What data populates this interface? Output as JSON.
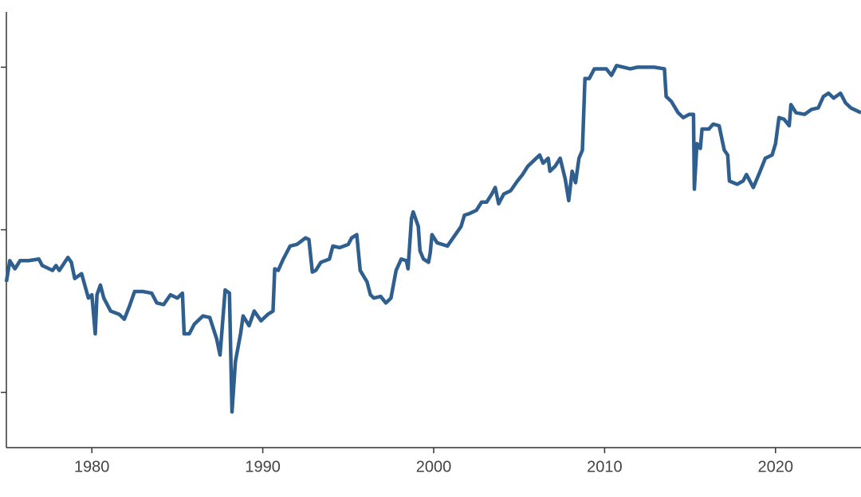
{
  "chart_data": {
    "type": "line",
    "x": [
      1975.0,
      1975.2,
      1975.5,
      1975.8,
      1976.3,
      1976.9,
      1977.1,
      1977.7,
      1977.9,
      1978.1,
      1978.6,
      1978.8,
      1979.0,
      1979.4,
      1979.8,
      1980.0,
      1980.2,
      1980.3,
      1980.5,
      1980.7,
      1981.1,
      1981.6,
      1981.9,
      1982.2,
      1982.5,
      1983.0,
      1983.5,
      1983.8,
      1984.2,
      1984.6,
      1985.0,
      1985.3,
      1985.4,
      1985.7,
      1986.0,
      1986.5,
      1986.9,
      1987.3,
      1987.5,
      1987.8,
      1988.05,
      1988.2,
      1988.4,
      1988.7,
      1988.85,
      1989.2,
      1989.5,
      1989.9,
      1990.3,
      1990.6,
      1990.7,
      1990.9,
      1991.2,
      1991.6,
      1992.0,
      1992.5,
      1992.7,
      1992.9,
      1993.1,
      1993.4,
      1993.9,
      1994.1,
      1994.5,
      1995.0,
      1995.2,
      1995.5,
      1995.7,
      1996.1,
      1996.3,
      1996.5,
      1996.9,
      1997.2,
      1997.5,
      1997.8,
      1998.1,
      1998.4,
      1998.5,
      1998.7,
      1998.8,
      1999.1,
      1999.2,
      1999.4,
      1999.7,
      1999.8,
      1999.9,
      2000.2,
      2000.5,
      2000.8,
      2001.2,
      2001.6,
      2001.8,
      2002.1,
      2002.5,
      2002.8,
      2003.1,
      2003.4,
      2003.6,
      2003.8,
      2004.1,
      2004.5,
      2004.9,
      2005.2,
      2005.5,
      2006.0,
      2006.2,
      2006.4,
      2006.7,
      2006.8,
      2007.1,
      2007.4,
      2007.7,
      2007.9,
      2008.1,
      2008.3,
      2008.5,
      2008.7,
      2008.85,
      2009.1,
      2009.4,
      2010.1,
      2010.4,
      2010.7,
      2011.5,
      2011.9,
      2012.5,
      2012.9,
      2013.5,
      2013.6,
      2013.9,
      2014.3,
      2014.6,
      2014.95,
      2015.2,
      2015.25,
      2015.4,
      2015.6,
      2015.7,
      2016.1,
      2016.35,
      2016.7,
      2017.0,
      2017.2,
      2017.3,
      2017.75,
      2018.1,
      2018.3,
      2018.5,
      2018.7,
      2019.1,
      2019.4,
      2019.8,
      2020.0,
      2020.2,
      2020.5,
      2020.8,
      2020.9,
      2021.2,
      2021.7,
      2022.1,
      2022.5,
      2022.8,
      2023.1,
      2023.4,
      2023.8,
      2024.1,
      2024.4,
      2025.0
    ],
    "series": [
      {
        "color": "#2e5f8f",
        "values": [
          1.68,
          1.81,
          1.76,
          1.81,
          1.81,
          1.82,
          1.78,
          1.75,
          1.78,
          1.75,
          1.83,
          1.8,
          1.7,
          1.73,
          1.58,
          1.6,
          1.36,
          1.6,
          1.66,
          1.58,
          1.5,
          1.48,
          1.45,
          1.53,
          1.62,
          1.62,
          1.61,
          1.55,
          1.54,
          1.6,
          1.58,
          1.61,
          1.36,
          1.36,
          1.42,
          1.47,
          1.46,
          1.33,
          1.23,
          1.63,
          1.61,
          0.88,
          1.19,
          1.36,
          1.47,
          1.41,
          1.5,
          1.44,
          1.48,
          1.5,
          1.76,
          1.75,
          1.82,
          1.9,
          1.91,
          1.95,
          1.94,
          1.74,
          1.75,
          1.8,
          1.82,
          1.9,
          1.89,
          1.91,
          1.95,
          1.97,
          1.75,
          1.68,
          1.6,
          1.58,
          1.59,
          1.55,
          1.58,
          1.75,
          1.82,
          1.81,
          1.76,
          2.07,
          2.11,
          2.02,
          1.87,
          1.82,
          1.8,
          1.86,
          1.97,
          1.92,
          1.91,
          1.9,
          1.96,
          2.02,
          2.09,
          2.1,
          2.12,
          2.17,
          2.17,
          2.22,
          2.26,
          2.16,
          2.22,
          2.24,
          2.3,
          2.34,
          2.39,
          2.44,
          2.46,
          2.41,
          2.44,
          2.36,
          2.39,
          2.44,
          2.31,
          2.18,
          2.36,
          2.29,
          2.44,
          2.49,
          2.93,
          2.93,
          2.99,
          2.99,
          2.95,
          3.01,
          2.99,
          3.0,
          3.0,
          3.0,
          2.99,
          2.82,
          2.79,
          2.72,
          2.69,
          2.71,
          2.71,
          2.25,
          2.53,
          2.5,
          2.62,
          2.62,
          2.65,
          2.64,
          2.49,
          2.46,
          2.3,
          2.28,
          2.3,
          2.34,
          2.3,
          2.26,
          2.36,
          2.44,
          2.46,
          2.53,
          2.69,
          2.68,
          2.64,
          2.77,
          2.72,
          2.71,
          2.74,
          2.75,
          2.82,
          2.84,
          2.81,
          2.84,
          2.78,
          2.75,
          2.72
        ]
      }
    ],
    "xlim": [
      1975,
      2025
    ],
    "xticks": [
      1980,
      1990,
      2000,
      2010,
      2020
    ],
    "ylim": [
      0.66,
      3.34
    ],
    "yticks": [
      1,
      2,
      3
    ]
  }
}
